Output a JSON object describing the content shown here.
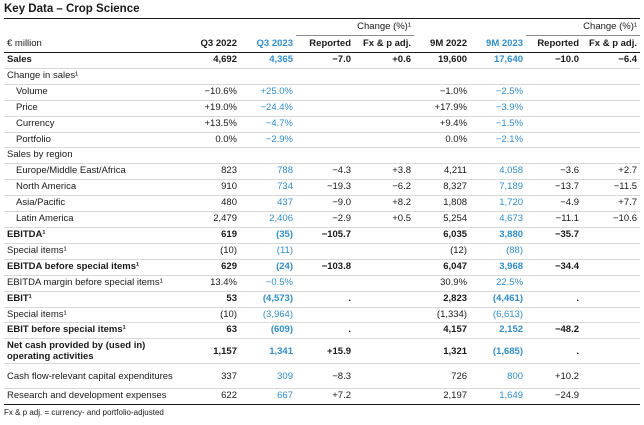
{
  "title": "Key Data – Crop Science",
  "header": {
    "group_change": "Change (%)¹",
    "unit": "€ million",
    "cols": [
      "Q3 2022",
      "Q3 2023",
      "Reported",
      "Fx & p adj.",
      "9M 2022",
      "9M 2023",
      "Reported",
      "Fx & p adj."
    ]
  },
  "rows": [
    {
      "label": "Sales",
      "style": "bold",
      "v": [
        "4,692",
        "4,365",
        "−7.0",
        "+0.6",
        "19,600",
        "17,640",
        "−10.0",
        "−6.4"
      ]
    },
    {
      "label": "Change in sales¹",
      "style": "sect",
      "v": [
        "",
        "",
        "",
        "",
        "",
        "",
        "",
        ""
      ]
    },
    {
      "label": "Volume",
      "style": "ind",
      "v": [
        "−10.6%",
        "+25.0%",
        "",
        "",
        "−1.0%",
        "−2.5%",
        "",
        ""
      ]
    },
    {
      "label": "Price",
      "style": "ind",
      "v": [
        "+19.0%",
        "−24.4%",
        "",
        "",
        "+17.9%",
        "−3.9%",
        "",
        ""
      ]
    },
    {
      "label": "Currency",
      "style": "ind",
      "v": [
        "+13.5%",
        "−4.7%",
        "",
        "",
        "+9.4%",
        "−1.5%",
        "",
        ""
      ]
    },
    {
      "label": "Portfolio",
      "style": "ind",
      "v": [
        "0.0%",
        "−2.9%",
        "",
        "",
        "0.0%",
        "−2.1%",
        "",
        ""
      ]
    },
    {
      "label": "Sales by region",
      "style": "sect",
      "v": [
        "",
        "",
        "",
        "",
        "",
        "",
        "",
        ""
      ]
    },
    {
      "label": "Europe/Middle East/Africa",
      "style": "ind",
      "v": [
        "823",
        "788",
        "−4.3",
        "+3.8",
        "4,211",
        "4,058",
        "−3.6",
        "+2.7"
      ]
    },
    {
      "label": "North America",
      "style": "ind",
      "v": [
        "910",
        "734",
        "−19.3",
        "−6.2",
        "8,327",
        "7,189",
        "−13.7",
        "−11.5"
      ]
    },
    {
      "label": "Asia/Pacific",
      "style": "ind",
      "v": [
        "480",
        "437",
        "−9.0",
        "+8.2",
        "1,808",
        "1,720",
        "−4.9",
        "+7.7"
      ]
    },
    {
      "label": "Latin America",
      "style": "ind",
      "v": [
        "2,479",
        "2,406",
        "−2.9",
        "+0.5",
        "5,254",
        "4,673",
        "−11.1",
        "−10.6"
      ]
    },
    {
      "label": "EBITDA¹",
      "style": "bold",
      "v": [
        "619",
        "(35)",
        "−105.7",
        "",
        "6,035",
        "3,880",
        "−35.7",
        ""
      ]
    },
    {
      "label": "Special items¹",
      "style": "",
      "v": [
        "(10)",
        "(11)",
        "",
        "",
        "(12)",
        "(88)",
        "",
        ""
      ]
    },
    {
      "label": "EBITDA before special items¹",
      "style": "bold",
      "v": [
        "629",
        "(24)",
        "−103.8",
        "",
        "6,047",
        "3,968",
        "−34.4",
        ""
      ]
    },
    {
      "label": "EBITDA margin before special items¹",
      "style": "",
      "v": [
        "13.4%",
        "−0.5%",
        "",
        "",
        "30.9%",
        "22.5%",
        "",
        ""
      ]
    },
    {
      "label": "EBIT¹",
      "style": "bold",
      "v": [
        "53",
        "(4,573)",
        ".",
        "",
        "2,823",
        "(4,461)",
        ".",
        ""
      ]
    },
    {
      "label": "Special items¹",
      "style": "",
      "v": [
        "(10)",
        "(3,964)",
        "",
        "",
        "(1,334)",
        "(6,613)",
        "",
        ""
      ]
    },
    {
      "label": "EBIT before special items¹",
      "style": "bold",
      "v": [
        "63",
        "(609)",
        ".",
        "",
        "4,157",
        "2,152",
        "−48.2",
        ""
      ]
    },
    {
      "label": "Net cash provided by (used in) operating activities",
      "style": "bold tall",
      "v": [
        "1,157",
        "1,341",
        "+15.9",
        "",
        "1,321",
        "(1,685)",
        ".",
        ""
      ]
    },
    {
      "label": "Cash flow-relevant capital expenditures",
      "style": "tall",
      "v": [
        "337",
        "309",
        "−8.3",
        "",
        "726",
        "800",
        "+10.2",
        ""
      ]
    },
    {
      "label": "Research and development expenses",
      "style": "last",
      "v": [
        "622",
        "667",
        "+7.2",
        "",
        "2,197",
        "1,649",
        "−24.9",
        ""
      ]
    }
  ],
  "footnote": "Fx & p adj. = currency- and portfolio-adjusted",
  "colors": {
    "highlight": "#2f8fd0",
    "rule": "#1a1a1a",
    "gridline": "#d9d9d9"
  }
}
